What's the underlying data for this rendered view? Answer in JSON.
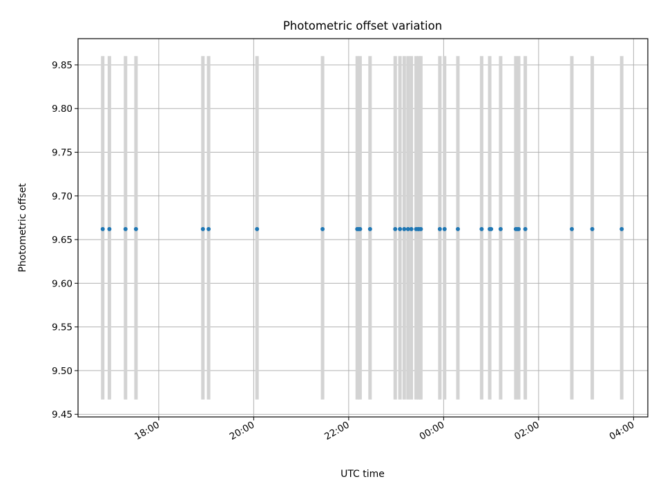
{
  "chart_data": {
    "type": "scatter",
    "title": "Photometric offset variation",
    "xlabel": "UTC time",
    "ylabel": "Photometric offset",
    "x_is_time": true,
    "x_tick_labels": [
      "18:00",
      "20:00",
      "22:00",
      "00:00",
      "02:00",
      "04:00"
    ],
    "x_ticks_hours_since_0000_first_day": [
      18,
      20,
      22,
      24,
      26,
      28
    ],
    "xlim_hours": [
      16.3,
      28.3
    ],
    "ylim": [
      9.447,
      9.88
    ],
    "y_ticks": [
      9.45,
      9.5,
      9.55,
      9.6,
      9.65,
      9.7,
      9.75,
      9.8,
      9.85
    ],
    "y_tick_labels": [
      "9.45",
      "9.50",
      "9.55",
      "9.60",
      "9.65",
      "9.70",
      "9.75",
      "9.80",
      "9.85"
    ],
    "grid": true,
    "bands": {
      "color": "#d3d3d3",
      "y_range": [
        9.467,
        9.86
      ],
      "times_hours": [
        16.82,
        16.96,
        17.3,
        17.52,
        18.93,
        19.05,
        20.07,
        21.45,
        22.18,
        22.24,
        22.45,
        22.98,
        23.08,
        23.17,
        23.25,
        23.32,
        23.42,
        23.48,
        23.52,
        23.92,
        24.02,
        24.3,
        24.8,
        24.97,
        25.2,
        25.52,
        25.58,
        25.72,
        26.7,
        27.13,
        27.75
      ]
    },
    "series": [
      {
        "color": "#1f77b4",
        "x_hours": [
          16.82,
          16.96,
          17.3,
          17.52,
          18.93,
          19.05,
          20.07,
          21.45,
          22.18,
          22.21,
          22.24,
          22.45,
          22.98,
          23.08,
          23.17,
          23.25,
          23.32,
          23.42,
          23.46,
          23.48,
          23.52,
          23.92,
          24.02,
          24.3,
          24.8,
          24.97,
          25.0,
          25.2,
          25.52,
          25.55,
          25.58,
          25.72,
          26.7,
          27.13,
          27.75
        ],
        "y": [
          9.662,
          9.662,
          9.662,
          9.662,
          9.662,
          9.662,
          9.662,
          9.662,
          9.662,
          9.662,
          9.662,
          9.662,
          9.662,
          9.662,
          9.662,
          9.662,
          9.662,
          9.662,
          9.662,
          9.662,
          9.662,
          9.662,
          9.662,
          9.662,
          9.662,
          9.662,
          9.662,
          9.662,
          9.662,
          9.662,
          9.662,
          9.662,
          9.662,
          9.662,
          9.662
        ]
      }
    ]
  }
}
